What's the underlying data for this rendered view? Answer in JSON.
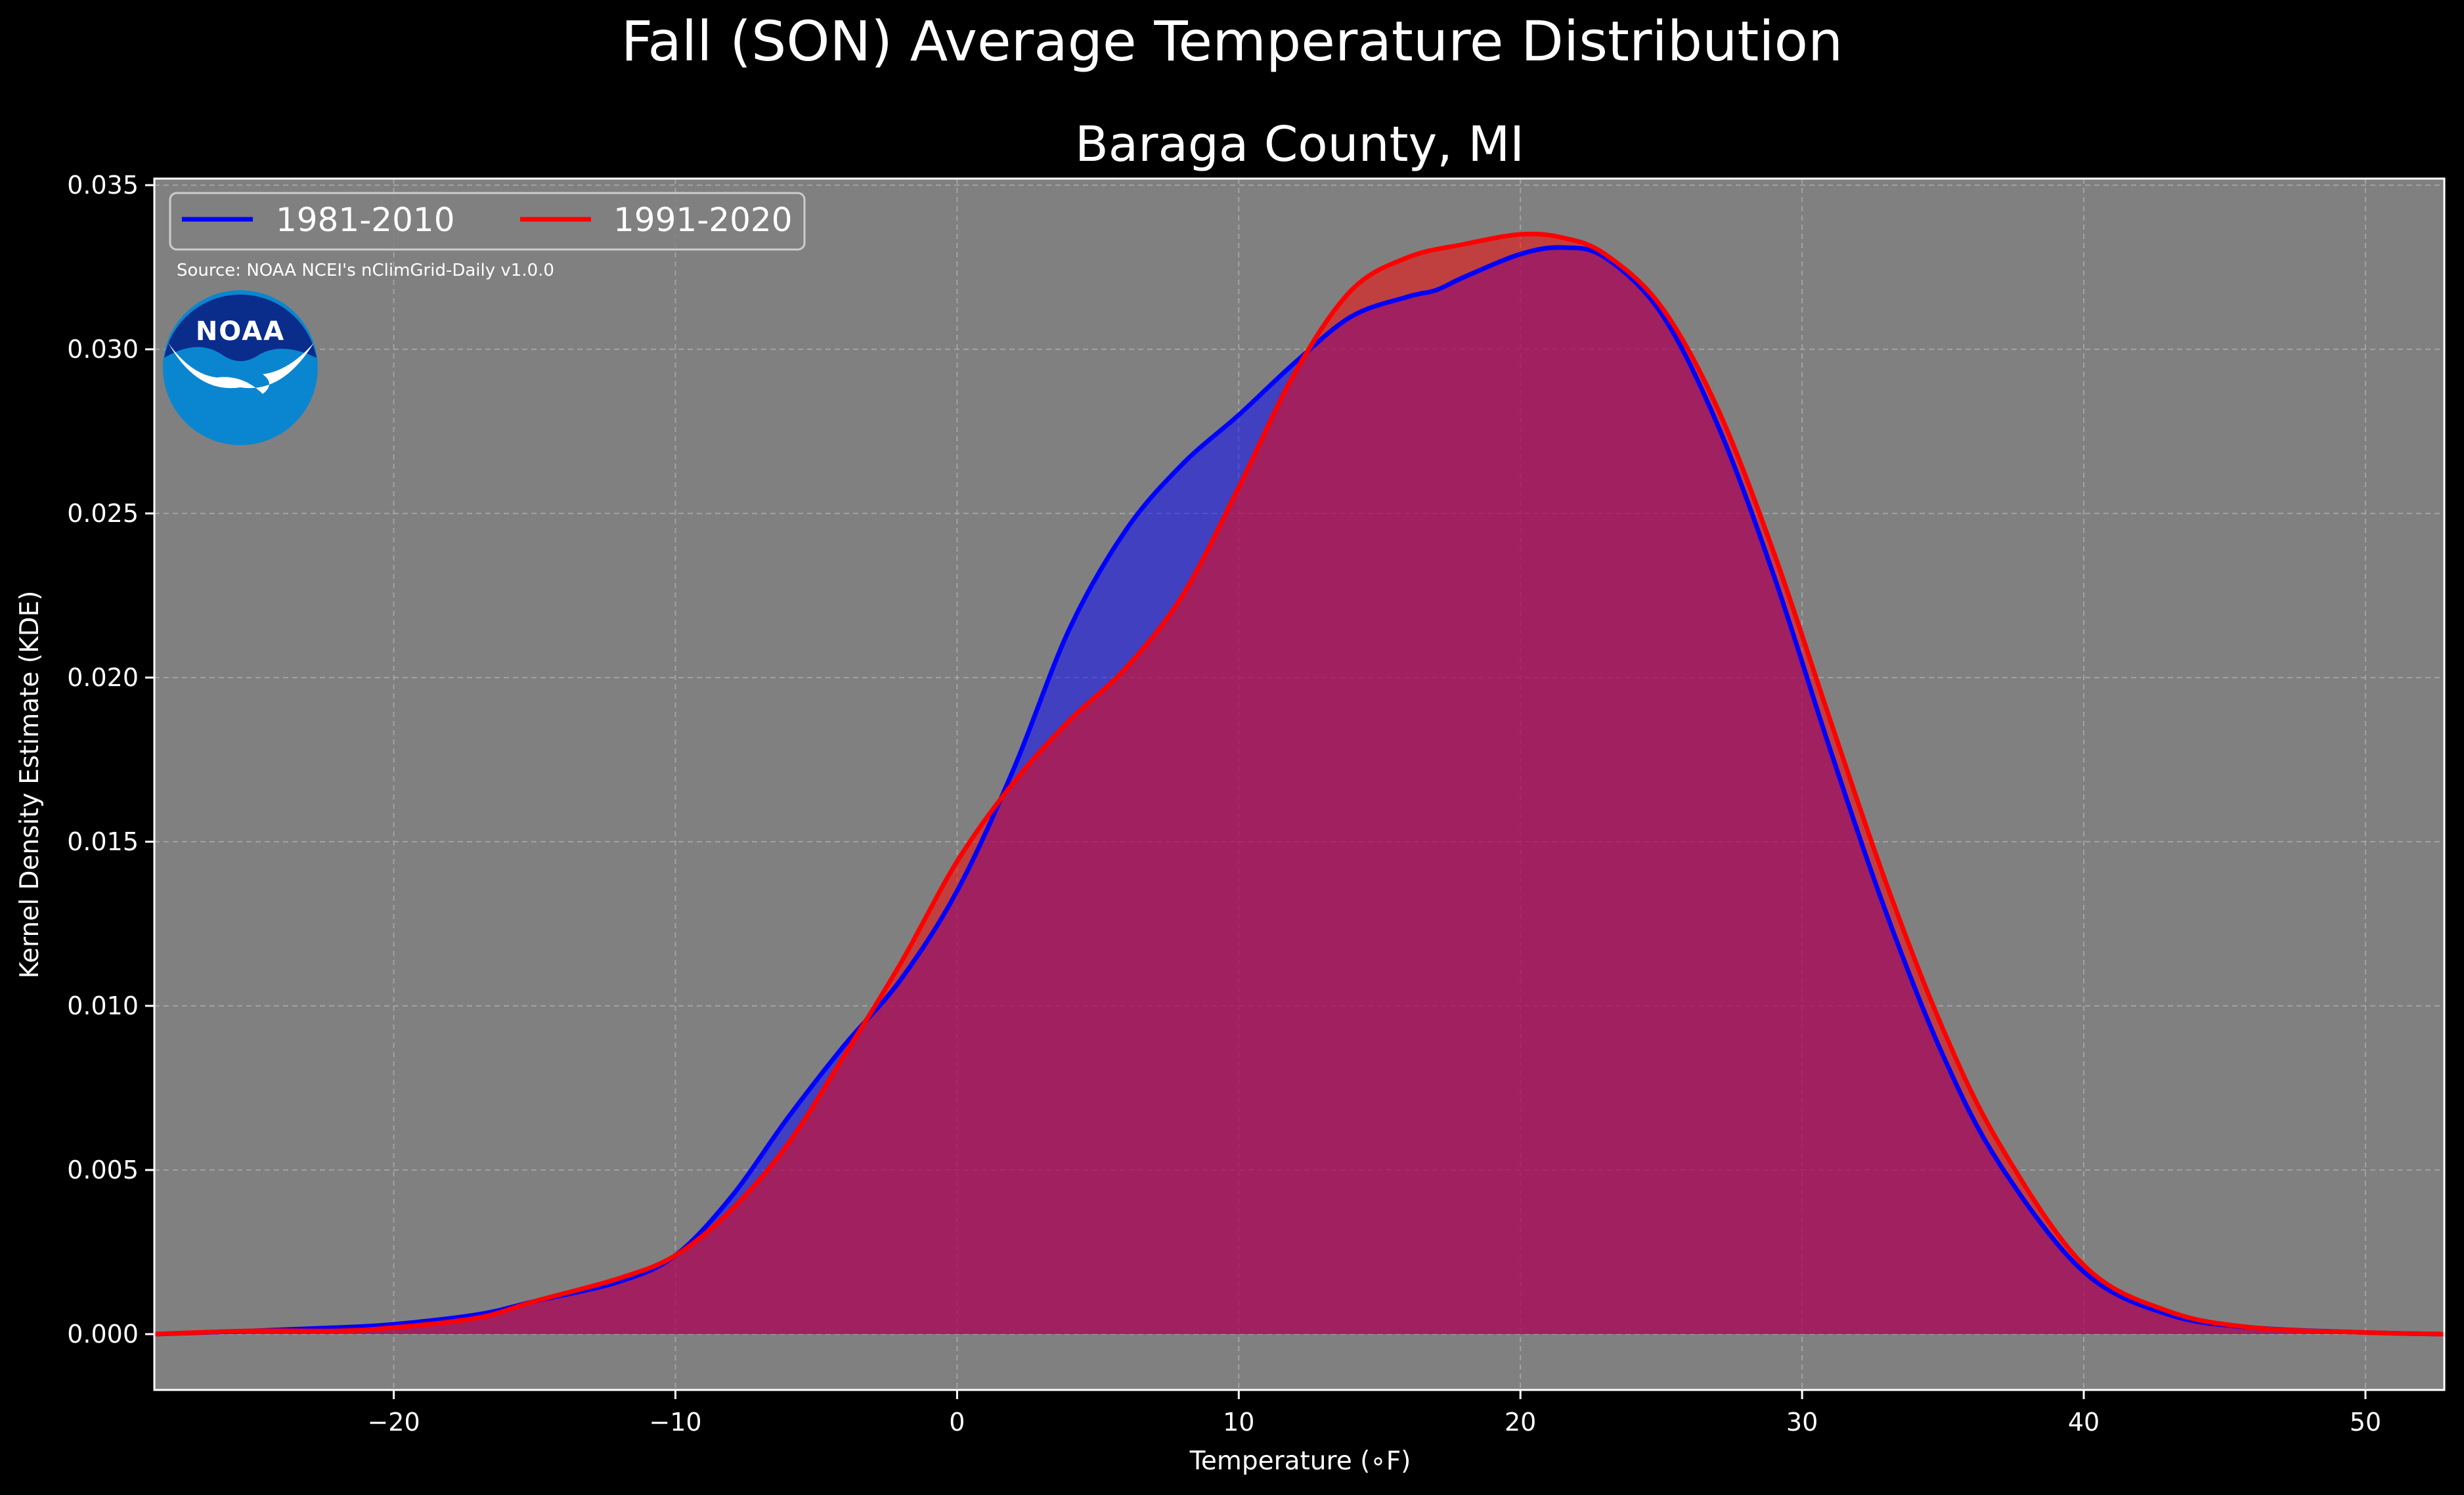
{
  "chart_data": {
    "type": "area",
    "title": "Fall (SON) Average Temperature Distribution",
    "subtitle": "Baraga County, MI",
    "xlabel": "Temperature (∘F)",
    "ylabel": "Kernel Density Estimate (KDE)",
    "xlim": [
      -28.5,
      52.8
    ],
    "ylim": [
      -0.0017,
      0.0352
    ],
    "xticks": [
      -20,
      -10,
      0,
      10,
      20,
      30,
      40,
      50
    ],
    "xtick_labels": [
      "−20",
      "−10",
      "0",
      "10",
      "20",
      "30",
      "40",
      "50"
    ],
    "yticks": [
      0.0,
      0.005,
      0.01,
      0.015,
      0.02,
      0.025,
      0.03,
      0.035
    ],
    "ytick_labels": [
      "0.000",
      "0.005",
      "0.010",
      "0.015",
      "0.020",
      "0.025",
      "0.030",
      "0.035"
    ],
    "grid": true,
    "background_color": "#808080",
    "legend_position": "top-left",
    "source_note": "Source: NOAA NCEI's nClimGrid-Daily v1.0.0",
    "logo_text": "NOAA",
    "series": [
      {
        "name": "1981-2010",
        "color": "#0000ff",
        "fill_color": "#0000ff",
        "fill_opacity": 0.5,
        "x": [
          -28.5,
          -25,
          -22,
          -20,
          -17,
          -15,
          -12,
          -10,
          -8,
          -6,
          -4,
          -2,
          0,
          2,
          4,
          6,
          8,
          10,
          12,
          14,
          16,
          17,
          18,
          20,
          21.5,
          23,
          25,
          27,
          29,
          31,
          33,
          35,
          37,
          40,
          43,
          46,
          50,
          52.8
        ],
        "y": [
          0.0,
          0.0001,
          0.0002,
          0.0003,
          0.0006,
          0.001,
          0.0016,
          0.0024,
          0.0042,
          0.0066,
          0.0088,
          0.0108,
          0.0135,
          0.0172,
          0.0215,
          0.0245,
          0.0265,
          0.028,
          0.0296,
          0.031,
          0.0316,
          0.0318,
          0.0322,
          0.0329,
          0.0331,
          0.0328,
          0.0311,
          0.0277,
          0.0231,
          0.0178,
          0.0128,
          0.0085,
          0.0052,
          0.0019,
          0.0006,
          0.0002,
          5e-05,
          0.0
        ]
      },
      {
        "name": "1991-2020",
        "color": "#ff0000",
        "fill_color": "#ff0000",
        "fill_opacity": 0.5,
        "x": [
          -28.5,
          -25,
          -22,
          -20,
          -17,
          -15,
          -12,
          -10,
          -8,
          -6,
          -4,
          -2,
          0,
          2,
          4,
          6,
          8,
          10,
          12,
          14,
          16,
          18,
          20,
          21.5,
          23,
          25,
          27,
          29,
          31,
          33,
          35,
          37,
          40,
          43,
          46,
          50,
          52.8
        ],
        "y": [
          0.0,
          0.0001,
          0.0001,
          0.0002,
          0.0005,
          0.001,
          0.0017,
          0.0024,
          0.0038,
          0.0058,
          0.0085,
          0.0113,
          0.0144,
          0.0168,
          0.0187,
          0.0203,
          0.0225,
          0.0258,
          0.0293,
          0.0318,
          0.0328,
          0.0332,
          0.0335,
          0.0334,
          0.0329,
          0.0313,
          0.0282,
          0.0238,
          0.0187,
          0.0137,
          0.0093,
          0.0058,
          0.0021,
          0.0007,
          0.0002,
          5e-05,
          0.0
        ]
      }
    ]
  }
}
